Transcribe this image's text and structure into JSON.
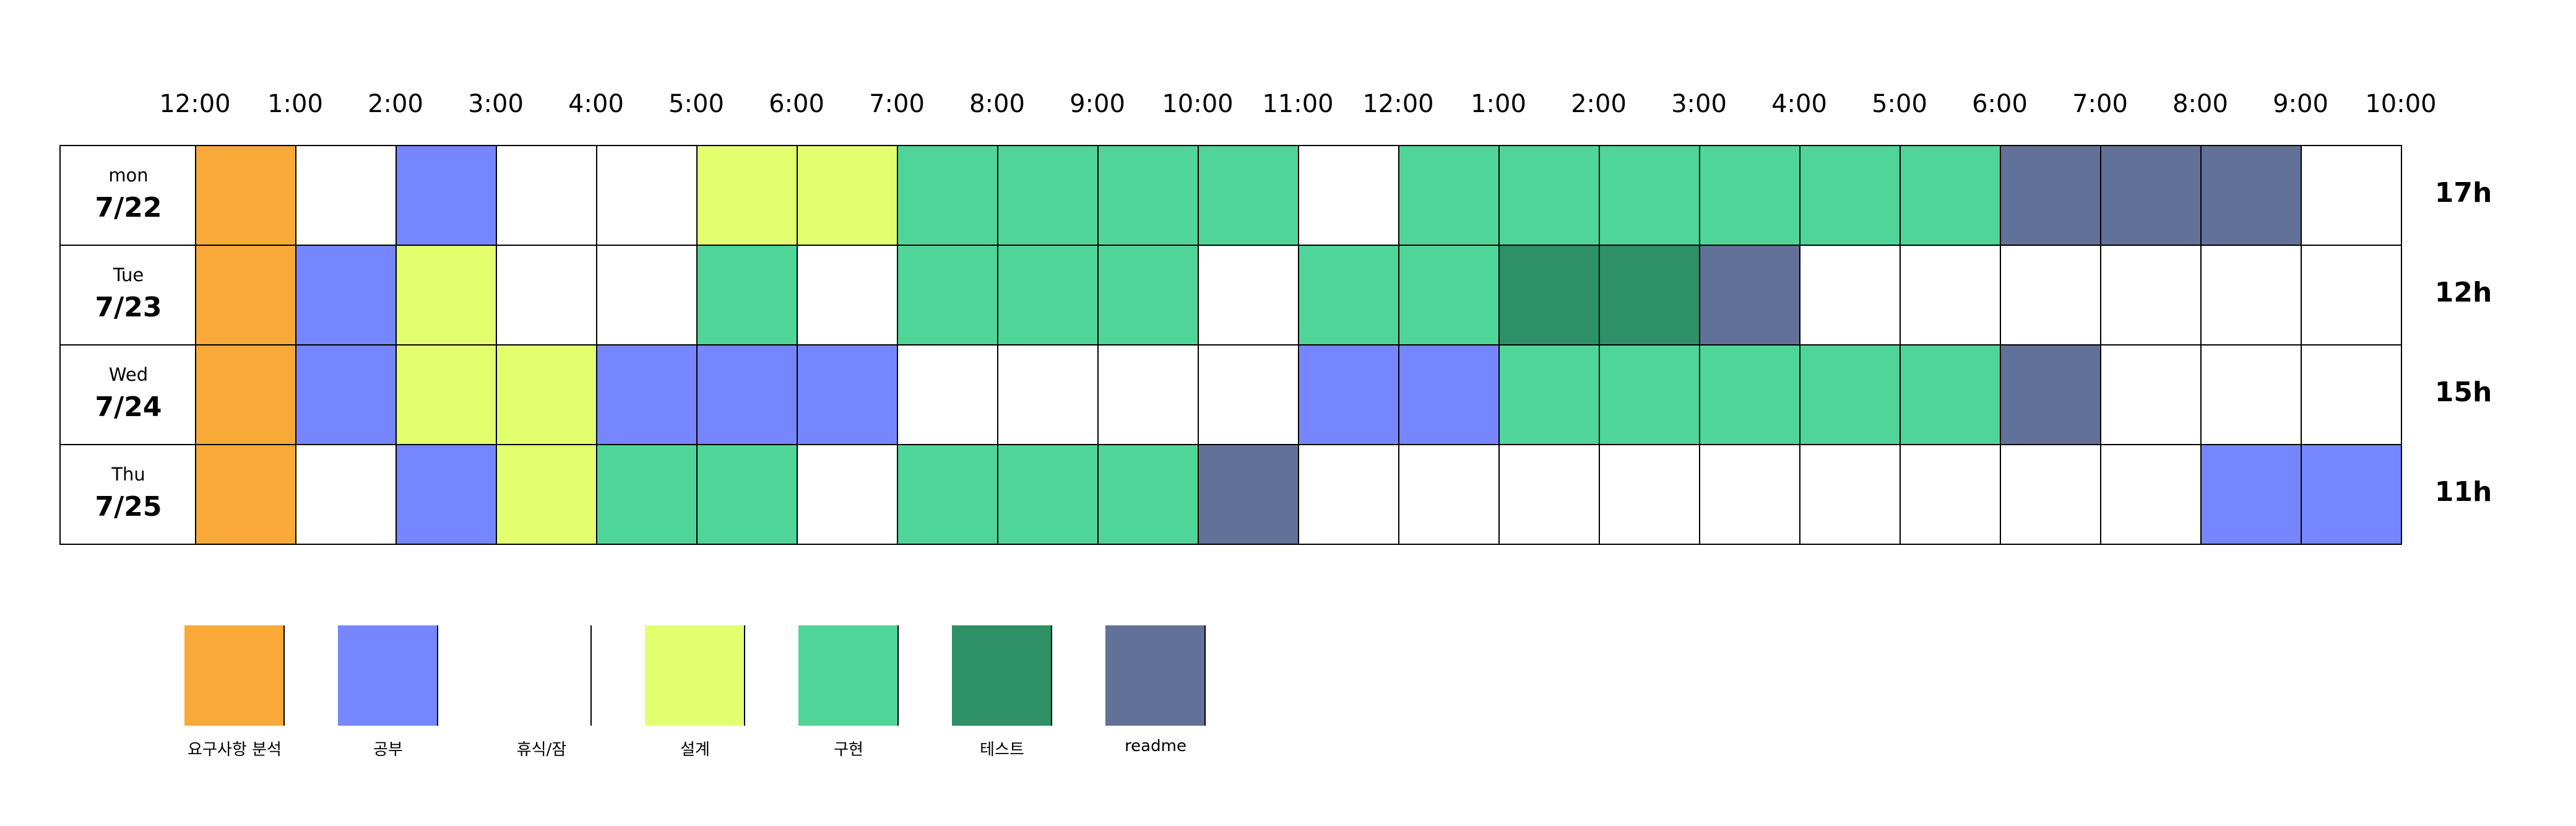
{
  "time_labels": [
    "12:00",
    "1:00",
    "2:00",
    "3:00",
    "4:00",
    "5:00",
    "6:00",
    "7:00",
    "8:00",
    "9:00",
    "10:00",
    "11:00",
    "12:00",
    "1:00",
    "2:00",
    "3:00",
    "4:00",
    "5:00",
    "6:00",
    "7:00",
    "8:00",
    "9:00",
    "10:00"
  ],
  "categories": {
    "A": {
      "label": "요구사항 분석",
      "color": "#F9A937"
    },
    "S": {
      "label": "공부",
      "color": "#7586FE"
    },
    "R": {
      "label": "휴식/잠",
      "color": "#FFFFFF"
    },
    "D": {
      "label": "설계",
      "color": "#E3FF6E"
    },
    "I": {
      "label": "구현",
      "color": "#4ED597"
    },
    "T": {
      "label": "테스트",
      "color": "#2D9066"
    },
    "M": {
      "label": "readme",
      "color": "#617198"
    }
  },
  "legend_order": [
    "A",
    "S",
    "R",
    "D",
    "I",
    "T",
    "M"
  ],
  "days": [
    {
      "name": "mon",
      "date": "7/22",
      "total": "17h",
      "slots": [
        "A",
        "R",
        "S",
        "R",
        "R",
        "D",
        "D",
        "I",
        "I",
        "I",
        "I",
        "R",
        "I",
        "I",
        "I",
        "I",
        "I",
        "I",
        "M",
        "M",
        "M",
        "R"
      ]
    },
    {
      "name": "Tue",
      "date": "7/23",
      "total": "12h",
      "slots": [
        "A",
        "S",
        "D",
        "R",
        "R",
        "I",
        "R",
        "I",
        "I",
        "I",
        "R",
        "I",
        "I",
        "T",
        "T",
        "M",
        "R",
        "R",
        "R",
        "R",
        "R",
        "R"
      ]
    },
    {
      "name": "Wed",
      "date": "7/24",
      "total": "15h",
      "slots": [
        "A",
        "S",
        "D",
        "D",
        "S",
        "S",
        "S",
        "R",
        "R",
        "R",
        "R",
        "S",
        "S",
        "I",
        "I",
        "I",
        "I",
        "I",
        "M",
        "R",
        "R",
        "R"
      ]
    },
    {
      "name": "Thu",
      "date": "7/25",
      "total": "11h",
      "slots": [
        "A",
        "R",
        "S",
        "D",
        "I",
        "I",
        "R",
        "I",
        "I",
        "I",
        "M",
        "R",
        "R",
        "R",
        "R",
        "R",
        "R",
        "R",
        "R",
        "R",
        "S",
        "S"
      ]
    }
  ]
}
